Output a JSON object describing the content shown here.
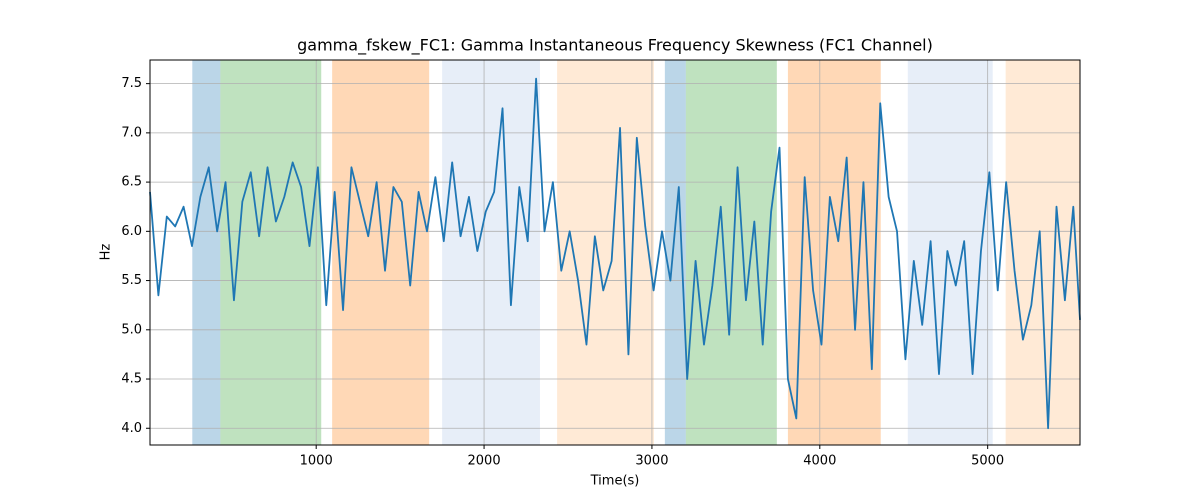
{
  "chart_data": {
    "type": "line",
    "title": "gamma_fskew_FC1: Gamma Instantaneous Frequency Skewness (FC1 Channel)",
    "xlabel": "Time(s)",
    "ylabel": "Hz",
    "xlim": [
      10,
      5550
    ],
    "ylim": [
      3.83,
      7.74
    ],
    "xticks": [
      1000,
      2000,
      3000,
      4000,
      5000
    ],
    "yticks": [
      {
        "value": 4,
        "label": "4.0"
      },
      4.5,
      {
        "value": 5,
        "label": "5.0"
      },
      5.5,
      {
        "value": 6,
        "label": "6.0"
      },
      6.5,
      {
        "value": 7,
        "label": "7.0"
      },
      7.5
    ],
    "grid": true,
    "spans": [
      {
        "x": [
          262,
          429
        ],
        "color": "#1f77b4",
        "alpha": 0.3
      },
      {
        "x": [
          429,
          1030
        ],
        "color": "#2ca02c",
        "alpha": 0.3
      },
      {
        "x": [
          1095,
          1673
        ],
        "color": "#ff7f0e",
        "alpha": 0.3
      },
      {
        "x": [
          1750,
          2333
        ],
        "color": "#aec7e8",
        "alpha": 0.3
      },
      {
        "x": [
          2435,
          3012
        ],
        "color": "#ffbb78",
        "alpha": 0.3
      },
      {
        "x": [
          3077,
          3202
        ],
        "color": "#1f77b4",
        "alpha": 0.3
      },
      {
        "x": [
          3202,
          3744
        ],
        "color": "#2ca02c",
        "alpha": 0.3
      },
      {
        "x": [
          3810,
          4363
        ],
        "color": "#ff7f0e",
        "alpha": 0.3
      },
      {
        "x": [
          4524,
          5030
        ],
        "color": "#aec7e8",
        "alpha": 0.3
      },
      {
        "x": [
          5107,
          5550
        ],
        "color": "#ffbb78",
        "alpha": 0.3
      }
    ],
    "x": [
      10,
      60,
      110,
      160,
      210,
      260,
      310,
      360,
      410,
      460,
      510,
      560,
      610,
      660,
      710,
      760,
      810,
      860,
      910,
      960,
      1010,
      1060,
      1110,
      1160,
      1210,
      1260,
      1310,
      1360,
      1410,
      1460,
      1510,
      1560,
      1610,
      1660,
      1710,
      1760,
      1810,
      1860,
      1910,
      1960,
      2010,
      2060,
      2110,
      2160,
      2210,
      2260,
      2310,
      2360,
      2410,
      2460,
      2510,
      2560,
      2610,
      2660,
      2710,
      2760,
      2810,
      2860,
      2910,
      2960,
      3010,
      3060,
      3110,
      3160,
      3210,
      3260,
      3310,
      3360,
      3410,
      3460,
      3510,
      3560,
      3610,
      3660,
      3710,
      3760,
      3810,
      3860,
      3910,
      3960,
      4010,
      4060,
      4110,
      4160,
      4210,
      4260,
      4310,
      4360,
      4410,
      4460,
      4510,
      4560,
      4610,
      4660,
      4710,
      4760,
      4810,
      4860,
      4910,
      4960,
      5010,
      5060,
      5110,
      5160,
      5210,
      5260,
      5310,
      5360,
      5410,
      5460,
      5510,
      5550
    ],
    "series": [
      {
        "color": "#1f77b4",
        "values": [
          6.4,
          5.35,
          6.15,
          6.05,
          6.25,
          5.85,
          6.35,
          6.65,
          6.0,
          6.5,
          5.3,
          6.3,
          6.6,
          5.95,
          6.65,
          6.1,
          6.35,
          6.7,
          6.45,
          5.85,
          6.65,
          5.25,
          6.4,
          5.2,
          6.65,
          6.3,
          5.95,
          6.5,
          5.6,
          6.45,
          6.3,
          5.45,
          6.4,
          6.0,
          6.55,
          5.9,
          6.7,
          5.95,
          6.35,
          5.8,
          6.2,
          6.4,
          7.25,
          5.25,
          6.45,
          5.9,
          7.55,
          6.0,
          6.5,
          5.6,
          6.0,
          5.5,
          4.85,
          5.95,
          5.4,
          5.7,
          7.05,
          4.75,
          6.95,
          6.05,
          5.4,
          6.0,
          5.5,
          6.45,
          4.5,
          5.7,
          4.85,
          5.45,
          6.25,
          4.95,
          6.65,
          5.3,
          6.1,
          4.85,
          6.2,
          6.85,
          4.5,
          4.1,
          6.55,
          5.4,
          4.85,
          6.35,
          5.9,
          6.75,
          5.0,
          6.5,
          4.6,
          7.3,
          6.35,
          6.0,
          4.7,
          5.7,
          5.05,
          5.9,
          4.55,
          5.8,
          5.45,
          5.9,
          4.55,
          5.8,
          6.6,
          5.4,
          6.5,
          5.6,
          4.9,
          5.25,
          6.0,
          4.0,
          6.25,
          5.3,
          6.25,
          5.1
        ]
      }
    ]
  }
}
